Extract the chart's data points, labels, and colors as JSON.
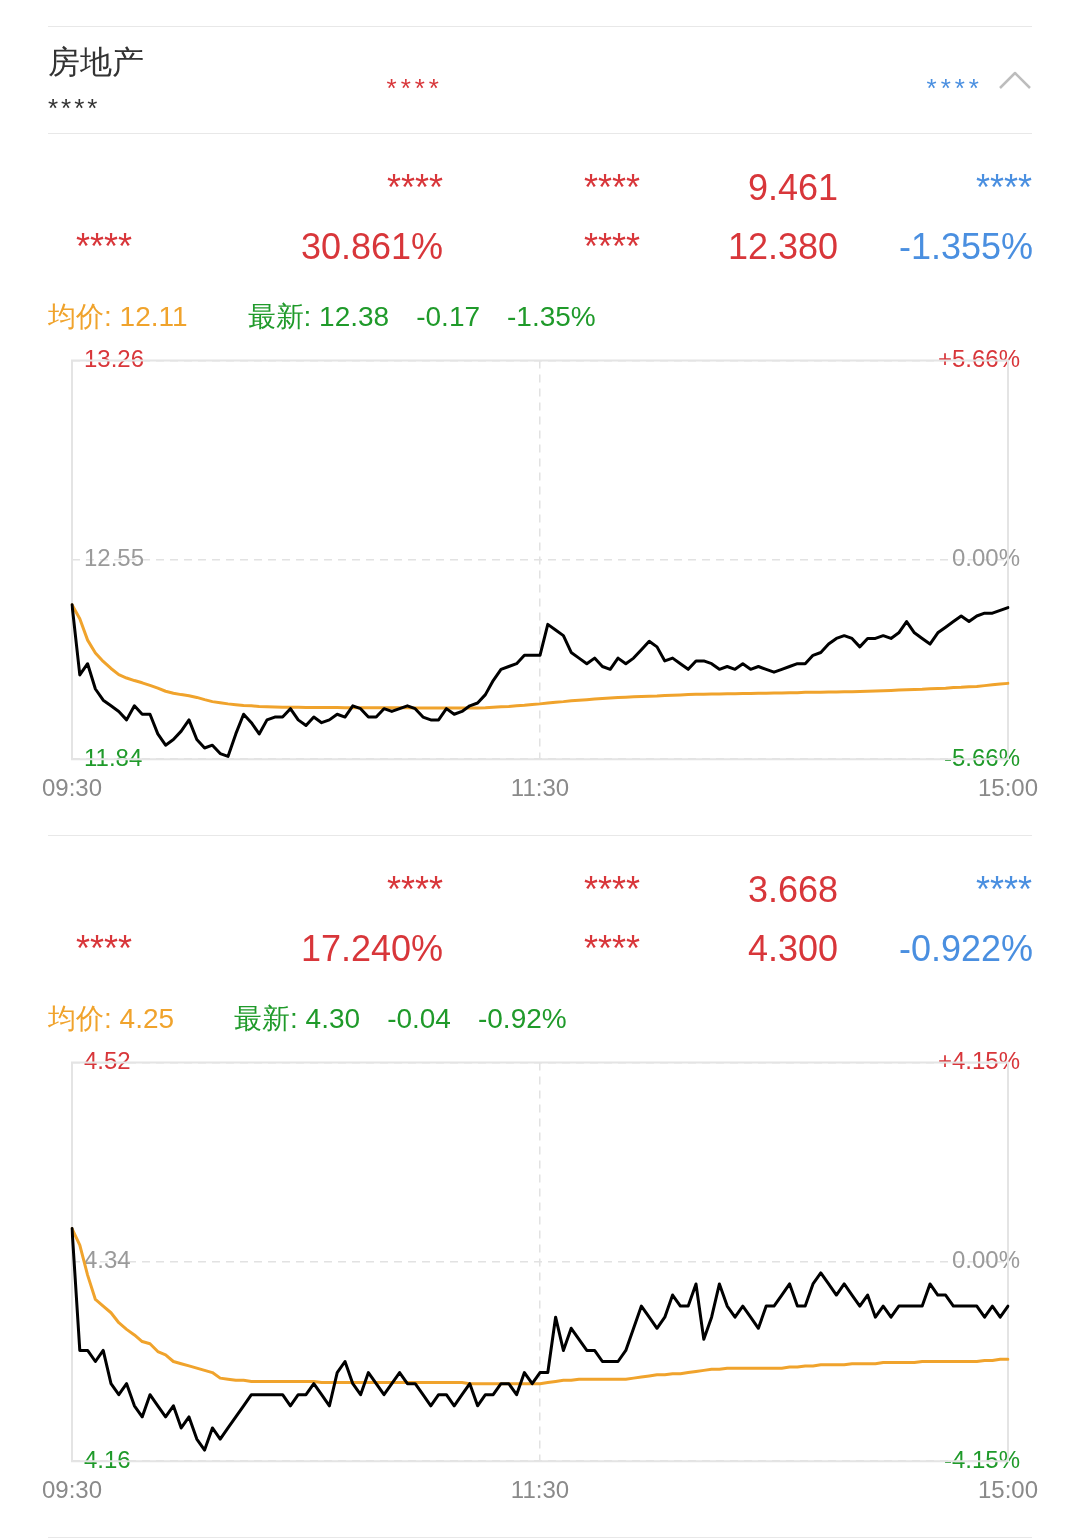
{
  "chart_data": [
    {
      "type": "other",
      "title": "房地产",
      "subtitle": "****",
      "annotations": [
        "****",
        "****"
      ]
    },
    {
      "type": "line",
      "annotations": [
        "****",
        "****",
        "9.461",
        "****",
        "****",
        "30.861%",
        "****",
        "12.380",
        "-1.355%",
        "均价: 12.11",
        "最新: 12.38",
        "-0.17",
        "-1.35%"
      ],
      "categories": [
        "09:30",
        null,
        null,
        null,
        null,
        null,
        null,
        null,
        null,
        null,
        null,
        null,
        null,
        null,
        null,
        null,
        null,
        null,
        null,
        null,
        null,
        null,
        null,
        null,
        null,
        null,
        null,
        null,
        null,
        null,
        null,
        null,
        null,
        null,
        null,
        null,
        null,
        null,
        null,
        null,
        null,
        null,
        null,
        null,
        null,
        null,
        null,
        null,
        null,
        null,
        null,
        null,
        null,
        null,
        null,
        null,
        null,
        null,
        null,
        null,
        "11:30",
        null,
        null,
        null,
        null,
        null,
        null,
        null,
        null,
        null,
        null,
        null,
        null,
        null,
        null,
        null,
        null,
        null,
        null,
        null,
        null,
        null,
        null,
        null,
        null,
        null,
        null,
        null,
        null,
        null,
        null,
        null,
        null,
        null,
        null,
        null,
        null,
        null,
        null,
        null,
        null,
        null,
        null,
        null,
        null,
        null,
        null,
        null,
        null,
        null,
        null,
        null,
        null,
        null,
        null,
        null,
        null,
        null,
        null,
        null,
        "15:00"
      ],
      "series": [
        {
          "color": "#000000",
          "values": [
            12.39,
            12.14,
            12.18,
            12.09,
            12.05,
            12.03,
            12.01,
            11.98,
            12.03,
            12.0,
            12.0,
            11.93,
            11.89,
            11.91,
            11.94,
            11.98,
            11.91,
            11.88,
            11.89,
            11.86,
            11.85,
            11.93,
            12.0,
            11.97,
            11.93,
            11.98,
            11.99,
            11.99,
            12.02,
            11.98,
            11.96,
            11.99,
            11.97,
            11.98,
            12.0,
            11.99,
            12.03,
            12.02,
            11.99,
            11.99,
            12.02,
            12.01,
            12.02,
            12.03,
            12.02,
            11.99,
            11.98,
            11.98,
            12.02,
            12.0,
            12.01,
            12.03,
            12.04,
            12.07,
            12.12,
            12.16,
            12.17,
            12.18,
            12.21,
            12.21,
            12.21,
            12.32,
            12.3,
            12.28,
            12.22,
            12.2,
            12.18,
            12.2,
            12.17,
            12.16,
            12.2,
            12.18,
            12.2,
            12.23,
            12.26,
            12.24,
            12.19,
            12.2,
            12.18,
            12.16,
            12.19,
            12.19,
            12.18,
            12.16,
            12.17,
            12.16,
            12.18,
            12.16,
            12.17,
            12.16,
            12.15,
            12.16,
            12.17,
            12.18,
            12.18,
            12.21,
            12.22,
            12.25,
            12.27,
            12.28,
            12.27,
            12.24,
            12.27,
            12.27,
            12.28,
            12.27,
            12.29,
            12.33,
            12.29,
            12.27,
            12.25,
            12.29,
            12.31,
            12.33,
            12.35,
            12.33,
            12.35,
            12.36,
            12.36,
            12.37,
            12.38
          ]
        },
        {
          "color": "#f0a32c",
          "values": [
            12.39,
            12.34,
            12.264,
            12.218,
            12.188,
            12.163,
            12.141,
            12.129,
            12.12,
            12.112,
            12.103,
            12.093,
            12.082,
            12.075,
            12.07,
            12.066,
            12.06,
            12.052,
            12.045,
            12.041,
            12.037,
            12.034,
            12.031,
            12.03,
            12.028,
            12.027,
            12.026,
            12.025,
            12.025,
            12.025,
            12.024,
            12.024,
            12.024,
            12.024,
            12.024,
            12.023,
            12.023,
            12.023,
            12.023,
            12.023,
            12.023,
            12.023,
            12.023,
            12.023,
            12.022,
            12.022,
            12.022,
            12.022,
            12.022,
            12.022,
            12.022,
            12.022,
            12.022,
            12.023,
            12.025,
            12.027,
            12.028,
            12.03,
            12.032,
            12.035,
            12.037,
            12.04,
            12.043,
            12.045,
            12.048,
            12.05,
            12.052,
            12.054,
            12.056,
            12.058,
            12.06,
            12.061,
            12.062,
            12.063,
            12.064,
            12.065,
            12.067,
            12.068,
            12.069,
            12.07,
            12.071,
            12.071,
            12.072,
            12.072,
            12.073,
            12.073,
            12.074,
            12.074,
            12.075,
            12.075,
            12.076,
            12.076,
            12.077,
            12.077,
            12.078,
            12.078,
            12.078,
            12.079,
            12.079,
            12.08,
            12.08,
            12.081,
            12.082,
            12.083,
            12.084,
            12.085,
            12.086,
            12.087,
            12.088,
            12.089,
            12.091,
            12.092,
            12.093,
            12.095,
            12.096,
            12.098,
            12.099,
            12.102,
            12.105,
            12.108,
            12.11
          ]
        }
      ],
      "ylim": [
        11.84,
        13.26
      ],
      "yticks": [
        11.84,
        12.55,
        13.26
      ],
      "y2lim": [
        -5.66,
        5.66
      ],
      "y2ticks": [
        {
          "value": -5.66,
          "label": "-5.66%"
        },
        {
          "value": 0,
          "label": "0.00%"
        },
        {
          "value": 5.66,
          "label": "+5.66%"
        }
      ],
      "grid": true
    },
    {
      "type": "line",
      "annotations": [
        "****",
        "****",
        "3.668",
        "****",
        "****",
        "17.240%",
        "****",
        "4.300",
        "-0.922%",
        "均价: 4.25",
        "最新: 4.30",
        "-0.04",
        "-0.92%"
      ],
      "categories": [
        "09:30",
        null,
        null,
        null,
        null,
        null,
        null,
        null,
        null,
        null,
        null,
        null,
        null,
        null,
        null,
        null,
        null,
        null,
        null,
        null,
        null,
        null,
        null,
        null,
        null,
        null,
        null,
        null,
        null,
        null,
        null,
        null,
        null,
        null,
        null,
        null,
        null,
        null,
        null,
        null,
        null,
        null,
        null,
        null,
        null,
        null,
        null,
        null,
        null,
        null,
        null,
        null,
        null,
        null,
        null,
        null,
        null,
        null,
        null,
        null,
        "11:30",
        null,
        null,
        null,
        null,
        null,
        null,
        null,
        null,
        null,
        null,
        null,
        null,
        null,
        null,
        null,
        null,
        null,
        null,
        null,
        null,
        null,
        null,
        null,
        null,
        null,
        null,
        null,
        null,
        null,
        null,
        null,
        null,
        null,
        null,
        null,
        null,
        null,
        null,
        null,
        null,
        null,
        null,
        null,
        null,
        null,
        null,
        null,
        null,
        null,
        null,
        null,
        null,
        null,
        null,
        null,
        null,
        null,
        null,
        null,
        "15:00"
      ],
      "series": [
        {
          "color": "#000000",
          "values": [
            4.37,
            4.26,
            4.26,
            4.25,
            4.26,
            4.23,
            4.22,
            4.23,
            4.21,
            4.2,
            4.22,
            4.21,
            4.2,
            4.21,
            4.19,
            4.2,
            4.18,
            4.17,
            4.19,
            4.18,
            4.19,
            4.2,
            4.21,
            4.22,
            4.22,
            4.22,
            4.22,
            4.22,
            4.21,
            4.22,
            4.22,
            4.23,
            4.22,
            4.21,
            4.24,
            4.25,
            4.23,
            4.22,
            4.24,
            4.23,
            4.22,
            4.23,
            4.24,
            4.23,
            4.23,
            4.22,
            4.21,
            4.22,
            4.22,
            4.21,
            4.22,
            4.23,
            4.21,
            4.22,
            4.22,
            4.23,
            4.23,
            4.22,
            4.24,
            4.23,
            4.24,
            4.24,
            4.29,
            4.26,
            4.28,
            4.27,
            4.26,
            4.26,
            4.25,
            4.25,
            4.25,
            4.26,
            4.28,
            4.3,
            4.29,
            4.28,
            4.29,
            4.31,
            4.3,
            4.3,
            4.32,
            4.27,
            4.29,
            4.32,
            4.3,
            4.29,
            4.3,
            4.29,
            4.28,
            4.3,
            4.3,
            4.31,
            4.32,
            4.3,
            4.3,
            4.32,
            4.33,
            4.32,
            4.31,
            4.32,
            4.31,
            4.3,
            4.31,
            4.29,
            4.3,
            4.29,
            4.3,
            4.3,
            4.3,
            4.3,
            4.32,
            4.31,
            4.31,
            4.3,
            4.3,
            4.3,
            4.3,
            4.29,
            4.3,
            4.29,
            4.3
          ]
        },
        {
          "color": "#f0a32c",
          "values": [
            4.37,
            4.355,
            4.328,
            4.306,
            4.3,
            4.294,
            4.285,
            4.279,
            4.274,
            4.268,
            4.266,
            4.259,
            4.256,
            4.25,
            4.248,
            4.246,
            4.244,
            4.242,
            4.24,
            4.235,
            4.234,
            4.233,
            4.233,
            4.232,
            4.232,
            4.232,
            4.232,
            4.232,
            4.232,
            4.232,
            4.232,
            4.232,
            4.231,
            4.231,
            4.231,
            4.231,
            4.231,
            4.231,
            4.231,
            4.231,
            4.231,
            4.231,
            4.231,
            4.231,
            4.231,
            4.231,
            4.231,
            4.231,
            4.231,
            4.231,
            4.231,
            4.23,
            4.23,
            4.23,
            4.23,
            4.23,
            4.23,
            4.23,
            4.23,
            4.23,
            4.23,
            4.231,
            4.232,
            4.233,
            4.233,
            4.234,
            4.234,
            4.234,
            4.234,
            4.234,
            4.234,
            4.234,
            4.235,
            4.236,
            4.237,
            4.238,
            4.238,
            4.239,
            4.239,
            4.24,
            4.241,
            4.242,
            4.243,
            4.243,
            4.244,
            4.244,
            4.244,
            4.244,
            4.244,
            4.244,
            4.244,
            4.244,
            4.245,
            4.245,
            4.246,
            4.246,
            4.247,
            4.247,
            4.247,
            4.247,
            4.248,
            4.248,
            4.248,
            4.248,
            4.249,
            4.249,
            4.249,
            4.249,
            4.249,
            4.25,
            4.25,
            4.25,
            4.25,
            4.25,
            4.25,
            4.25,
            4.25,
            4.251,
            4.251,
            4.252,
            4.252
          ]
        }
      ],
      "ylim": [
        4.16,
        4.52
      ],
      "yticks": [
        4.16,
        4.34,
        4.52
      ],
      "y2lim": [
        -4.15,
        4.15
      ],
      "y2ticks": [
        {
          "value": -4.15,
          "label": "-4.15%"
        },
        {
          "value": 0,
          "label": "0.00%"
        },
        {
          "value": 4.15,
          "label": "+4.15%"
        }
      ],
      "grid": true
    }
  ]
}
